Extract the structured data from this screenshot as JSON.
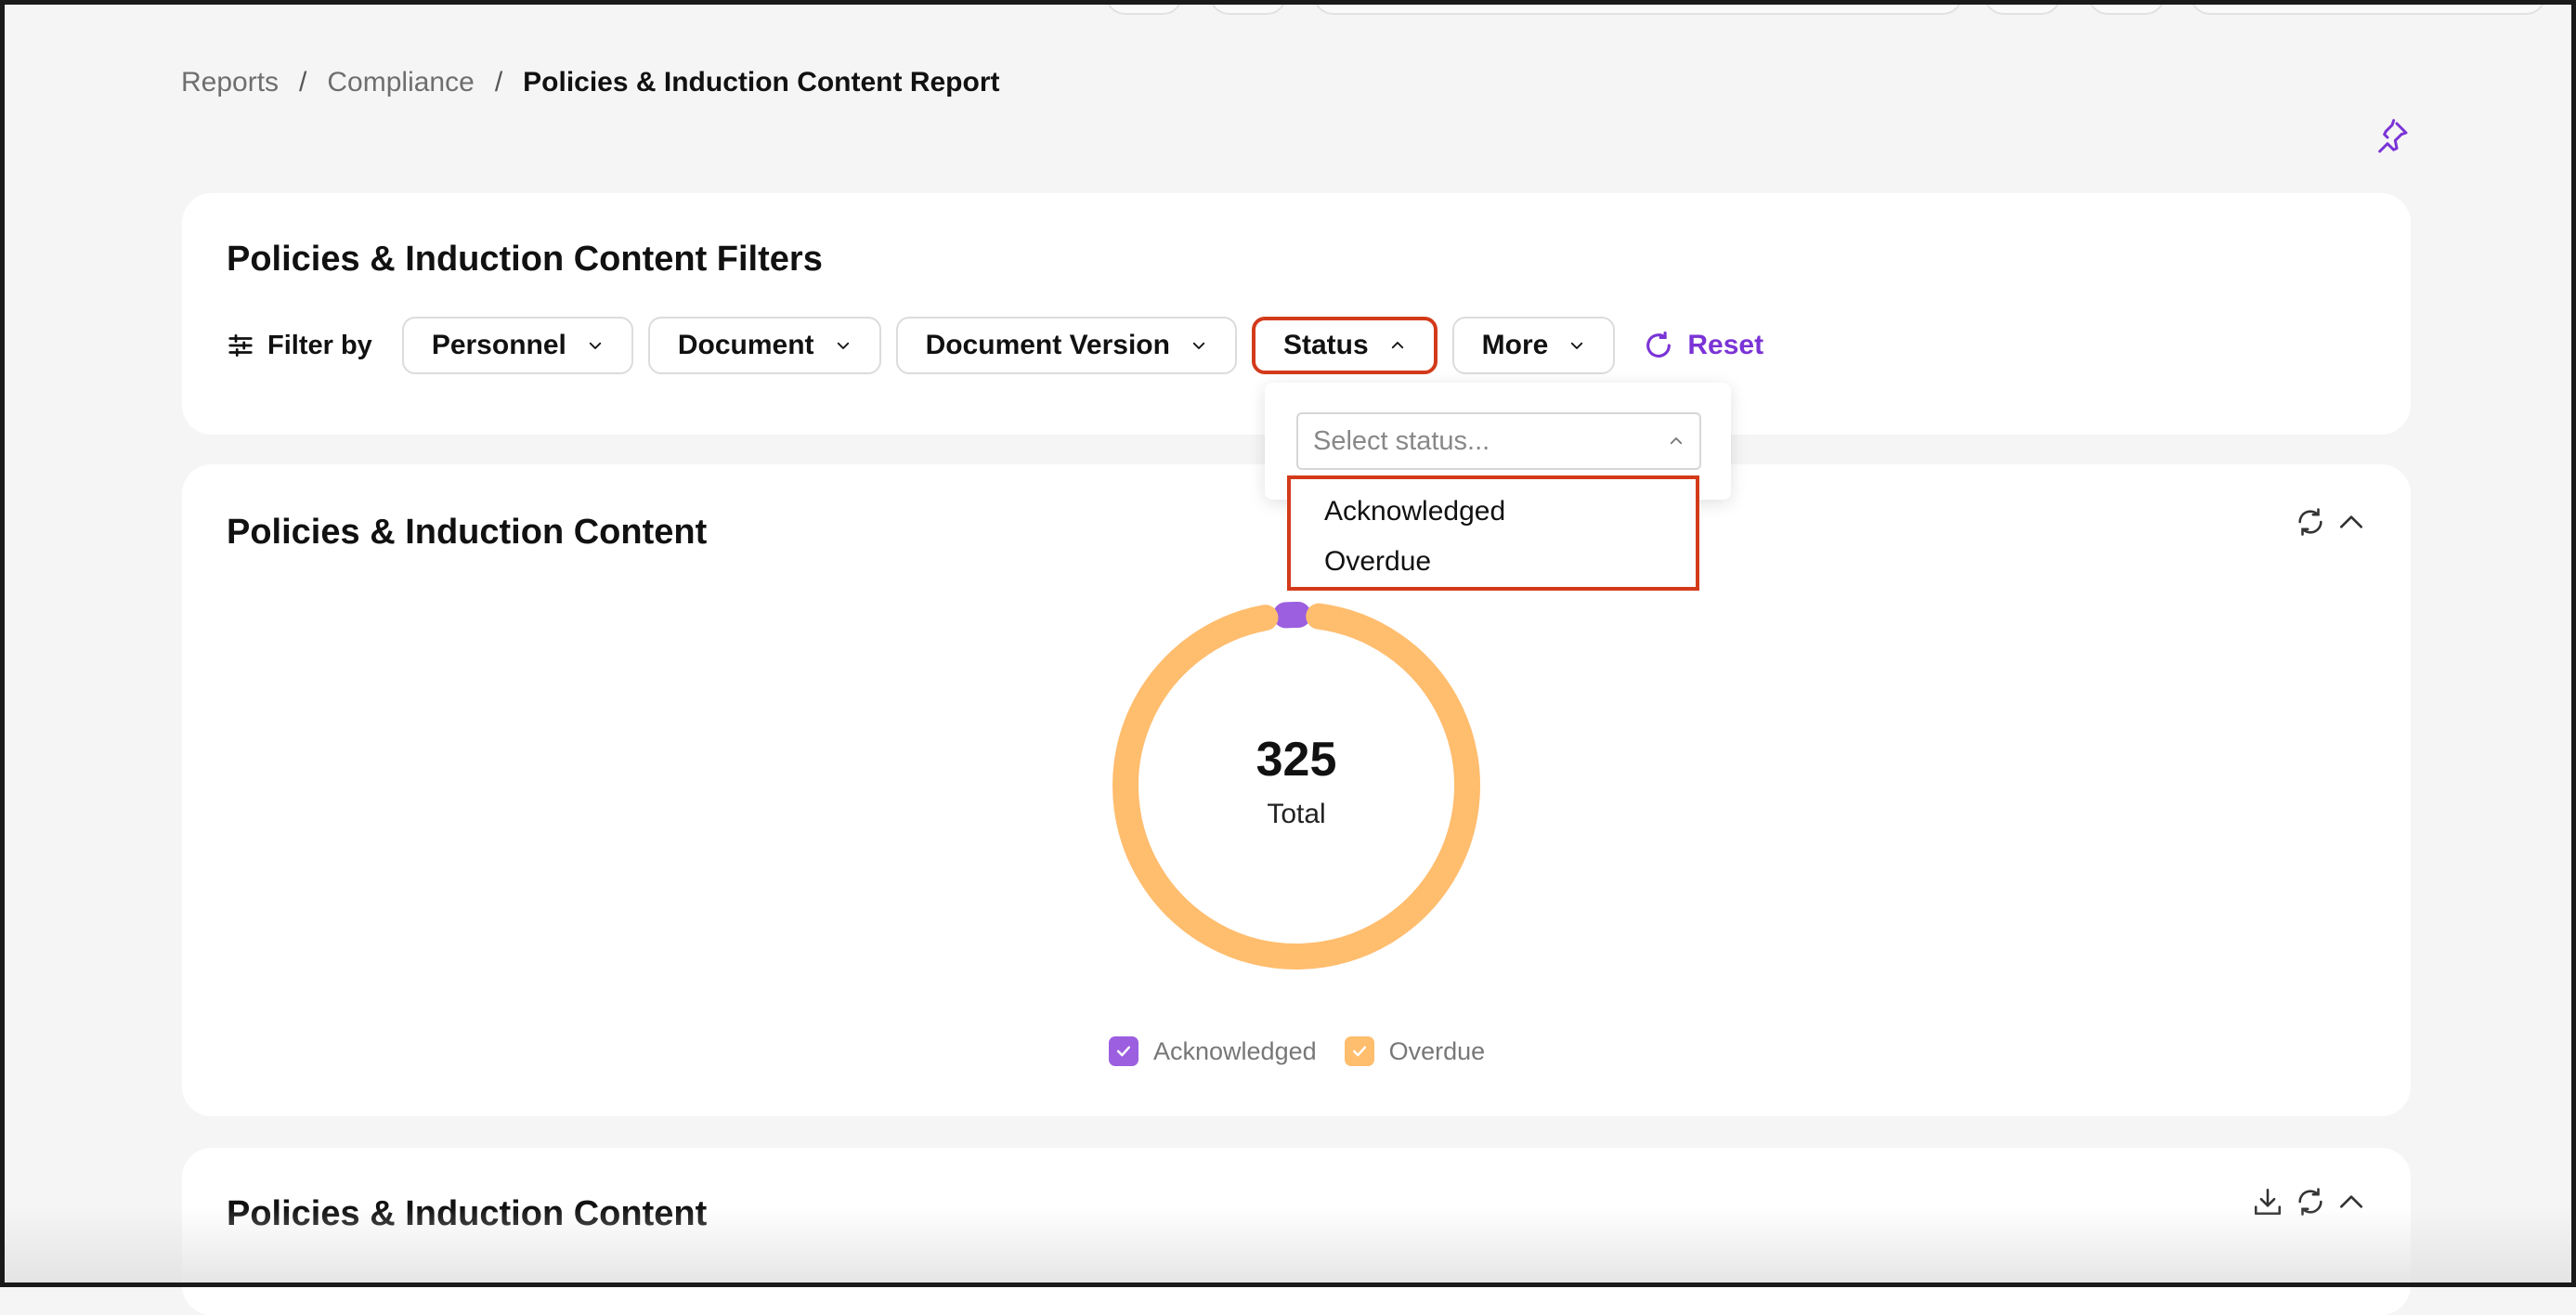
{
  "breadcrumb": {
    "items": [
      "Reports",
      "Compliance"
    ],
    "current": "Policies & Induction Content Report",
    "separator": "/"
  },
  "filters_card": {
    "title": "Policies & Induction Content Filters",
    "filter_by_label": "Filter by",
    "chips": {
      "personnel": "Personnel",
      "document": "Document",
      "document_version": "Document Version",
      "status": "Status",
      "more": "More"
    },
    "reset_label": "Reset"
  },
  "status_dropdown": {
    "placeholder": "Select status...",
    "options": [
      "Acknowledged",
      "Overdue"
    ]
  },
  "chart_card": {
    "title": "Policies & Induction Content",
    "total_value": "325",
    "total_label": "Total"
  },
  "table_card": {
    "title": "Policies & Induction Content"
  },
  "colors": {
    "accent": "#7a33d6",
    "acknowledged": "#9b5fe0",
    "overdue": "#ffbd6e",
    "highlight": "#d33a1a"
  },
  "chart_data": {
    "type": "pie",
    "variant": "donut",
    "center_value": 325,
    "center_label": "Total",
    "legend": [
      "Acknowledged",
      "Overdue"
    ],
    "values": [
      10,
      315
    ],
    "colors": [
      "#9b5fe0",
      "#ffbd6e"
    ],
    "legend_position": "bottom"
  }
}
